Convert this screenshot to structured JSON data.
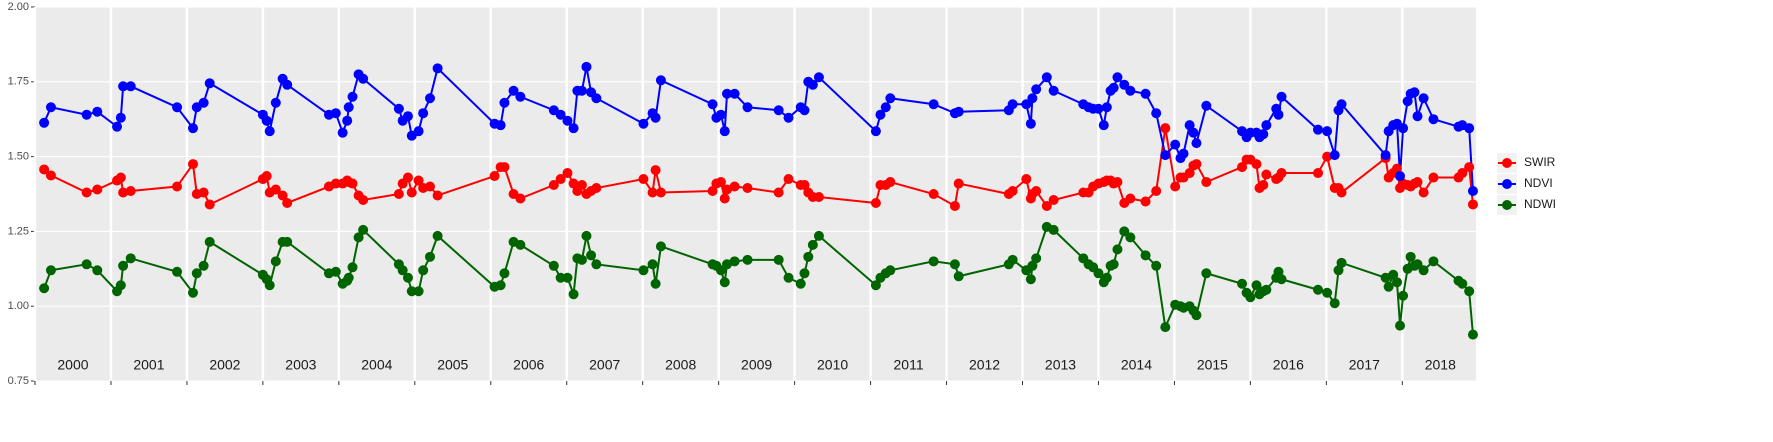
{
  "chart_data": {
    "type": "line",
    "x": [
      2000.12,
      2000.21,
      2000.68,
      2000.82,
      2001.08,
      2001.13,
      2001.16,
      2001.26,
      2001.87,
      2002.08,
      2002.13,
      2002.22,
      2002.3,
      2003.0,
      2003.05,
      2003.09,
      2003.17,
      2003.26,
      2003.32,
      2003.87,
      2003.96,
      2004.05,
      2004.11,
      2004.13,
      2004.18,
      2004.26,
      2004.32,
      2004.79,
      2004.84,
      2004.91,
      2004.96,
      2005.05,
      2005.11,
      2005.2,
      2005.3,
      2006.05,
      2006.13,
      2006.18,
      2006.3,
      2006.39,
      2006.83,
      2006.92,
      2007.01,
      2007.09,
      2007.14,
      2007.2,
      2007.26,
      2007.32,
      2007.39,
      2008.01,
      2008.13,
      2008.17,
      2008.24,
      2008.92,
      2008.97,
      2009.03,
      2009.08,
      2009.11,
      2009.21,
      2009.38,
      2009.79,
      2009.92,
      2010.08,
      2010.13,
      2010.18,
      2010.24,
      2010.32,
      2011.07,
      2011.13,
      2011.2,
      2011.26,
      2011.83,
      2012.11,
      2012.16,
      2012.82,
      2012.87,
      2013.05,
      2013.11,
      2013.13,
      2013.18,
      2013.32,
      2013.41,
      2013.8,
      2013.87,
      2013.93,
      2014.0,
      2014.07,
      2014.11,
      2014.16,
      2014.2,
      2014.25,
      2014.34,
      2014.42,
      2014.62,
      2014.76,
      2014.88,
      2015.01,
      2015.08,
      2015.12,
      2015.2,
      2015.25,
      2015.29,
      2015.42,
      2015.89,
      2015.95,
      2016.0,
      2016.08,
      2016.12,
      2016.17,
      2016.21,
      2016.34,
      2016.37,
      2016.41,
      2016.89,
      2017.01,
      2017.11,
      2017.16,
      2017.2,
      2017.78,
      2017.82,
      2017.88,
      2017.93,
      2017.97,
      2018.01,
      2018.07,
      2018.11,
      2018.16,
      2018.2,
      2018.28,
      2018.41,
      2018.74,
      2018.79,
      2018.88,
      2018.93
    ],
    "series": [
      {
        "name": "SWIR",
        "color": "#ff0000",
        "values": [
          1.457,
          1.437,
          1.38,
          1.39,
          1.42,
          1.43,
          1.38,
          1.385,
          1.4,
          1.475,
          1.375,
          1.38,
          1.34,
          1.425,
          1.435,
          1.38,
          1.39,
          1.37,
          1.345,
          1.4,
          1.41,
          1.41,
          1.42,
          1.415,
          1.41,
          1.37,
          1.355,
          1.375,
          1.41,
          1.43,
          1.38,
          1.42,
          1.395,
          1.4,
          1.37,
          1.435,
          1.465,
          1.465,
          1.375,
          1.36,
          1.405,
          1.425,
          1.445,
          1.41,
          1.385,
          1.405,
          1.375,
          1.385,
          1.395,
          1.425,
          1.38,
          1.455,
          1.38,
          1.385,
          1.41,
          1.415,
          1.36,
          1.39,
          1.4,
          1.395,
          1.38,
          1.425,
          1.405,
          1.405,
          1.38,
          1.365,
          1.365,
          1.345,
          1.405,
          1.405,
          1.415,
          1.375,
          1.335,
          1.41,
          1.375,
          1.385,
          1.425,
          1.36,
          1.375,
          1.385,
          1.335,
          1.355,
          1.38,
          1.38,
          1.4,
          1.41,
          1.415,
          1.42,
          1.42,
          1.41,
          1.415,
          1.345,
          1.36,
          1.35,
          1.385,
          1.595,
          1.4,
          1.43,
          1.43,
          1.445,
          1.47,
          1.475,
          1.415,
          1.465,
          1.49,
          1.49,
          1.475,
          1.395,
          1.405,
          1.44,
          1.425,
          1.43,
          1.445,
          1.445,
          1.5,
          1.395,
          1.395,
          1.38,
          1.495,
          1.43,
          1.445,
          1.46,
          1.395,
          1.41,
          1.405,
          1.4,
          1.41,
          1.415,
          1.38,
          1.43,
          1.43,
          1.445,
          1.465,
          1.34
        ]
      },
      {
        "name": "NDVI",
        "color": "#0000ff",
        "values": [
          1.613,
          1.665,
          1.64,
          1.65,
          1.6,
          1.63,
          1.735,
          1.735,
          1.665,
          1.595,
          1.665,
          1.68,
          1.745,
          1.64,
          1.62,
          1.585,
          1.68,
          1.76,
          1.74,
          1.64,
          1.645,
          1.58,
          1.62,
          1.665,
          1.7,
          1.775,
          1.76,
          1.66,
          1.62,
          1.635,
          1.57,
          1.585,
          1.645,
          1.695,
          1.795,
          1.61,
          1.605,
          1.68,
          1.72,
          1.7,
          1.655,
          1.64,
          1.62,
          1.595,
          1.72,
          1.72,
          1.8,
          1.715,
          1.695,
          1.61,
          1.645,
          1.63,
          1.755,
          1.675,
          1.63,
          1.64,
          1.585,
          1.71,
          1.71,
          1.665,
          1.655,
          1.63,
          1.665,
          1.655,
          1.75,
          1.74,
          1.765,
          1.585,
          1.64,
          1.665,
          1.695,
          1.675,
          1.645,
          1.65,
          1.655,
          1.675,
          1.675,
          1.61,
          1.695,
          1.725,
          1.765,
          1.72,
          1.675,
          1.665,
          1.66,
          1.66,
          1.605,
          1.665,
          1.72,
          1.73,
          1.765,
          1.74,
          1.72,
          1.71,
          1.645,
          1.505,
          1.54,
          1.495,
          1.51,
          1.605,
          1.58,
          1.545,
          1.67,
          1.585,
          1.565,
          1.58,
          1.58,
          1.565,
          1.575,
          1.605,
          1.66,
          1.64,
          1.7,
          1.59,
          1.585,
          1.505,
          1.655,
          1.675,
          1.505,
          1.585,
          1.605,
          1.61,
          1.435,
          1.595,
          1.685,
          1.71,
          1.715,
          1.635,
          1.695,
          1.625,
          1.6,
          1.605,
          1.595,
          1.385
        ]
      },
      {
        "name": "NDWI",
        "color": "#006400",
        "values": [
          1.06,
          1.12,
          1.14,
          1.12,
          1.05,
          1.07,
          1.135,
          1.16,
          1.115,
          1.045,
          1.11,
          1.135,
          1.215,
          1.105,
          1.09,
          1.07,
          1.15,
          1.215,
          1.215,
          1.11,
          1.115,
          1.075,
          1.085,
          1.095,
          1.13,
          1.23,
          1.255,
          1.14,
          1.12,
          1.095,
          1.05,
          1.05,
          1.12,
          1.165,
          1.235,
          1.065,
          1.07,
          1.11,
          1.215,
          1.205,
          1.135,
          1.095,
          1.095,
          1.04,
          1.16,
          1.155,
          1.235,
          1.17,
          1.14,
          1.12,
          1.14,
          1.075,
          1.2,
          1.14,
          1.135,
          1.12,
          1.08,
          1.14,
          1.15,
          1.155,
          1.155,
          1.095,
          1.075,
          1.11,
          1.165,
          1.205,
          1.235,
          1.07,
          1.095,
          1.11,
          1.12,
          1.15,
          1.14,
          1.1,
          1.14,
          1.155,
          1.12,
          1.09,
          1.135,
          1.16,
          1.265,
          1.255,
          1.16,
          1.14,
          1.13,
          1.11,
          1.08,
          1.095,
          1.135,
          1.14,
          1.19,
          1.25,
          1.23,
          1.17,
          1.135,
          0.93,
          1.005,
          1.0,
          0.995,
          1.0,
          0.985,
          0.97,
          1.11,
          1.075,
          1.045,
          1.03,
          1.07,
          1.04,
          1.05,
          1.055,
          1.095,
          1.115,
          1.09,
          1.055,
          1.045,
          1.01,
          1.12,
          1.145,
          1.095,
          1.065,
          1.105,
          1.08,
          0.935,
          1.035,
          1.125,
          1.165,
          1.135,
          1.14,
          1.12,
          1.15,
          1.085,
          1.075,
          1.05,
          0.905
        ]
      }
    ],
    "xlim": [
      2000,
      2018.97
    ],
    "xticks": [
      {
        "value": 2000,
        "label": "2000"
      },
      {
        "value": 2001,
        "label": "2001"
      },
      {
        "value": 2002,
        "label": "2002"
      },
      {
        "value": 2003,
        "label": "2003"
      },
      {
        "value": 2004,
        "label": "2004"
      },
      {
        "value": 2005,
        "label": "2005"
      },
      {
        "value": 2006,
        "label": "2006"
      },
      {
        "value": 2007,
        "label": "2007"
      },
      {
        "value": 2008,
        "label": "2008"
      },
      {
        "value": 2009,
        "label": "2009"
      },
      {
        "value": 2010,
        "label": "2010"
      },
      {
        "value": 2011,
        "label": "2011"
      },
      {
        "value": 2012,
        "label": "2012"
      },
      {
        "value": 2013,
        "label": "2013"
      },
      {
        "value": 2014,
        "label": "2014"
      },
      {
        "value": 2015,
        "label": "2015"
      },
      {
        "value": 2016,
        "label": "2016"
      },
      {
        "value": 2017,
        "label": "2017"
      },
      {
        "value": 2018,
        "label": "2018"
      }
    ],
    "ylim": [
      0.75,
      2.0
    ],
    "yticks": [
      0.75,
      {
        "value": 1.0,
        "label": "1.00"
      },
      1.25,
      {
        "value": 1.5,
        "label": "1.50"
      },
      1.75,
      {
        "value": 2.0,
        "label": "2.00"
      }
    ],
    "grid": true,
    "legend": "right"
  }
}
